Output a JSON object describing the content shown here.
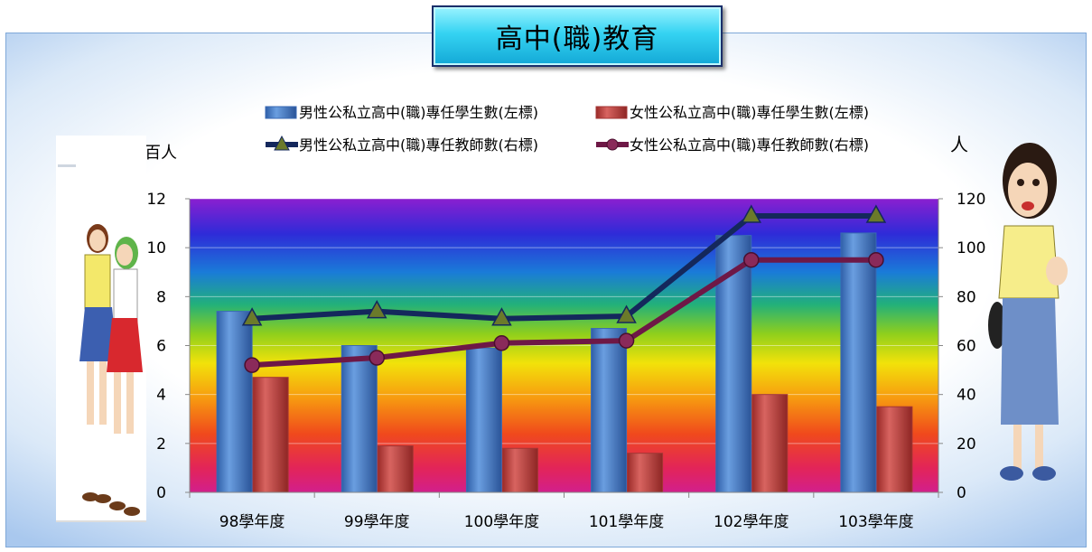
{
  "title": "高中(職)教育",
  "chart_data": {
    "type": "bar",
    "categories": [
      "98學年度",
      "99學年度",
      "100學年度",
      "101學年度",
      "102學年度",
      "103學年度"
    ],
    "series": [
      {
        "name": "男性公私立高中(職)專任學生數(左標)",
        "kind": "bar",
        "axis": "left",
        "color": "#4a7fc9",
        "values": [
          7.4,
          6.0,
          5.9,
          6.7,
          10.5,
          10.6
        ]
      },
      {
        "name": "女性公私立高中(職)專任學生數(左標)",
        "kind": "bar",
        "axis": "left",
        "color": "#c0403e",
        "values": [
          4.7,
          1.9,
          1.8,
          1.6,
          4.0,
          3.5
        ]
      },
      {
        "name": "男性公私立高中(職)專任教師數(右標)",
        "kind": "line",
        "axis": "right",
        "color": "#14285c",
        "marker": "triangle",
        "values": [
          71,
          74,
          71,
          72,
          113,
          113
        ]
      },
      {
        "name": "女性公私立高中(職)專任教師數(右標)",
        "kind": "line",
        "axis": "right",
        "color": "#6e1846",
        "marker": "circle",
        "values": [
          52,
          55,
          61,
          62,
          95,
          95
        ]
      }
    ],
    "y_left": {
      "label": "百人",
      "min": 0,
      "max": 12,
      "ticks": [
        0,
        2,
        4,
        6,
        8,
        10,
        12
      ]
    },
    "y_right": {
      "label": "人",
      "min": 0,
      "max": 120,
      "ticks": [
        0,
        20,
        40,
        60,
        80,
        100,
        120
      ]
    },
    "background": "rainbow-gradient",
    "legend_position": "top",
    "grid": true
  }
}
